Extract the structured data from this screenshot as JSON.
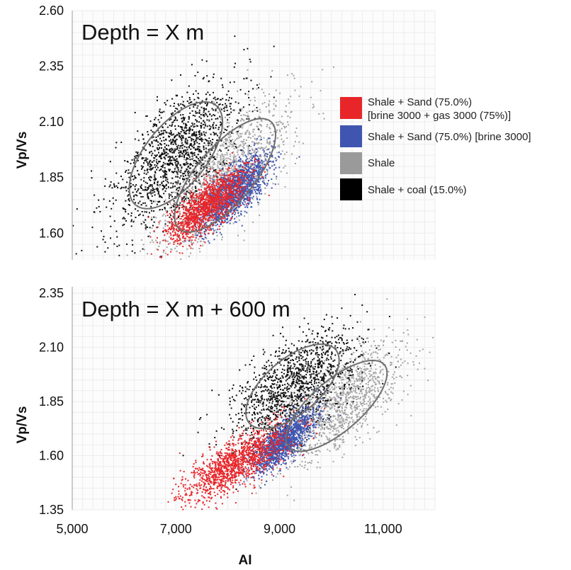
{
  "chart_data": [
    {
      "type": "scatter",
      "title": "Depth = X m",
      "xlabel": "AI",
      "ylabel": "Vp/Vs",
      "xlim": [
        5000,
        12000
      ],
      "ylim": [
        1.48,
        2.6
      ],
      "yticks": [
        "1.60",
        "1.85",
        "2.10",
        "2.35",
        "2.60"
      ],
      "grid": true,
      "series": [
        {
          "name": "Shale",
          "color": "#a3a3a3",
          "center": [
            7950,
            1.86
          ],
          "spread": [
            650,
            0.17
          ],
          "corr": 0.72
        },
        {
          "name": "Shale + coal (15.0%)",
          "color": "#101010",
          "center": [
            7000,
            1.95
          ],
          "spread": [
            600,
            0.16
          ],
          "corr": 0.62
        },
        {
          "name": "Shale + Sand (75.0%) [brine 3000]",
          "color": "#3f55b0",
          "center": [
            8150,
            1.79
          ],
          "spread": [
            330,
            0.08
          ],
          "corr": 0.75
        },
        {
          "name": "Shale + Sand (75.0%) [brine 3000 + gas 3000 (75%)]",
          "color": "#e8262a",
          "center": [
            7600,
            1.72
          ],
          "spread": [
            380,
            0.08
          ],
          "corr": 0.75
        }
      ]
    },
    {
      "type": "scatter",
      "title": "Depth = X m + 600 m",
      "xlabel": "AI",
      "ylabel": "Vp/Vs",
      "xlim": [
        5000,
        12000
      ],
      "ylim": [
        1.35,
        2.38
      ],
      "xticks": [
        "5,000",
        "7,000",
        "9,000",
        "11,000"
      ],
      "yticks": [
        "1.35",
        "1.60",
        "1.85",
        "2.10",
        "2.35"
      ],
      "grid": true,
      "series": [
        {
          "name": "Shale",
          "color": "#a3a3a3",
          "center": [
            10100,
            1.83
          ],
          "spread": [
            650,
            0.14
          ],
          "corr": 0.72
        },
        {
          "name": "Shale + coal (15.0%)",
          "color": "#101010",
          "center": [
            9250,
            1.92
          ],
          "spread": [
            600,
            0.13
          ],
          "corr": 0.62
        },
        {
          "name": "Shale + Sand (75.0%) [brine 3000]",
          "color": "#3f55b0",
          "center": [
            9050,
            1.66
          ],
          "spread": [
            300,
            0.07
          ],
          "corr": 0.75
        },
        {
          "name": "Shale + Sand (75.0%) [brine 3000 + gas 3000 (75%)]",
          "color": "#e8262a",
          "center": [
            8150,
            1.56
          ],
          "spread": [
            520,
            0.09
          ],
          "corr": 0.78
        }
      ]
    }
  ],
  "legend": {
    "placement": "right",
    "items": [
      {
        "color": "#e8262a",
        "label": "Shale + Sand (75.0%)",
        "label2": "[brine 3000 + gas 3000 (75%)]"
      },
      {
        "color": "#3f55b0",
        "label": "Shale + Sand (75.0%) [brine 3000]"
      },
      {
        "color": "#9a9a9a",
        "label": "Shale"
      },
      {
        "color": "#000000",
        "label": "Shale + coal (15.0%)"
      }
    ]
  }
}
